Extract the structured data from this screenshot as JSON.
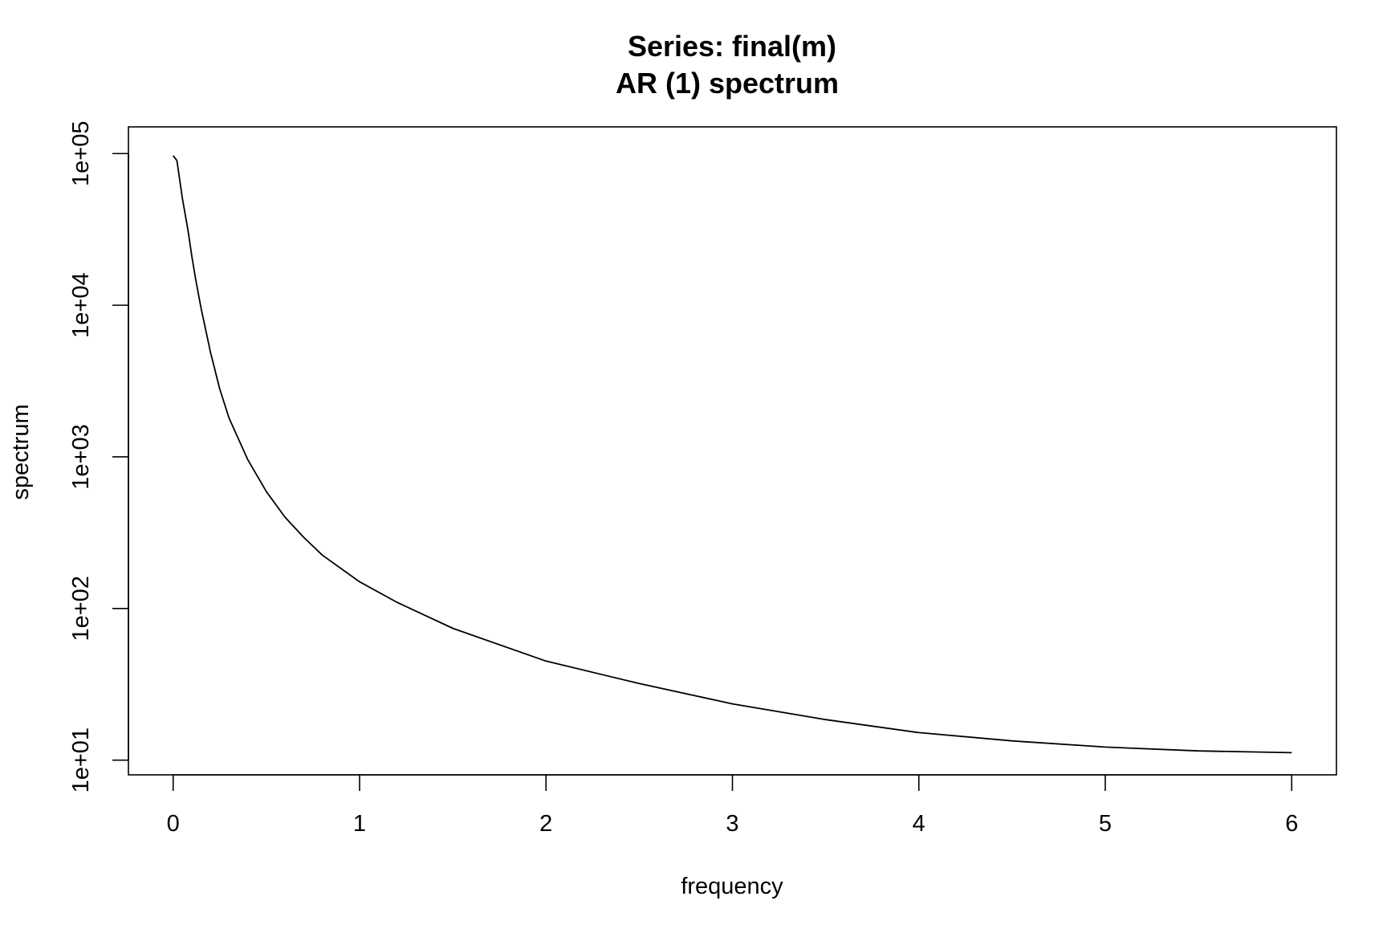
{
  "chart_data": {
    "type": "line",
    "title": "Series: final(m)",
    "subtitle": "AR (1) spectrum",
    "xlabel": "frequency",
    "ylabel": "spectrum",
    "xlim": [
      -0.24,
      6.24
    ],
    "ylim": [
      8.0,
      150000
    ],
    "y_scale": "log",
    "grid": false,
    "x_ticks": [
      0,
      1,
      2,
      3,
      4,
      5,
      6
    ],
    "x_tick_labels": [
      "0",
      "1",
      "2",
      "3",
      "4",
      "5",
      "6"
    ],
    "y_ticks": [
      10,
      100,
      1000,
      10000,
      100000
    ],
    "y_tick_labels": [
      "1e+01",
      "1e+02",
      "1e+03",
      "1e+04",
      "1e+05"
    ],
    "series": [
      {
        "color": "#000000",
        "x": [
          0.0,
          0.02,
          0.05,
          0.08,
          0.1,
          0.12,
          0.15,
          0.2,
          0.25,
          0.3,
          0.4,
          0.5,
          0.6,
          0.7,
          0.8,
          1.0,
          1.2,
          1.5,
          2.0,
          2.5,
          3.0,
          3.5,
          4.0,
          4.5,
          5.0,
          5.5,
          6.0
        ],
        "y": [
          97000,
          90000,
          50000,
          31000,
          21000,
          15000,
          9500,
          4900,
          2800,
          1800,
          960,
          590,
          400,
          295,
          225,
          150,
          110,
          74,
          45,
          32,
          23.5,
          18.5,
          15.2,
          13.4,
          12.2,
          11.5,
          11.2
        ]
      }
    ]
  }
}
